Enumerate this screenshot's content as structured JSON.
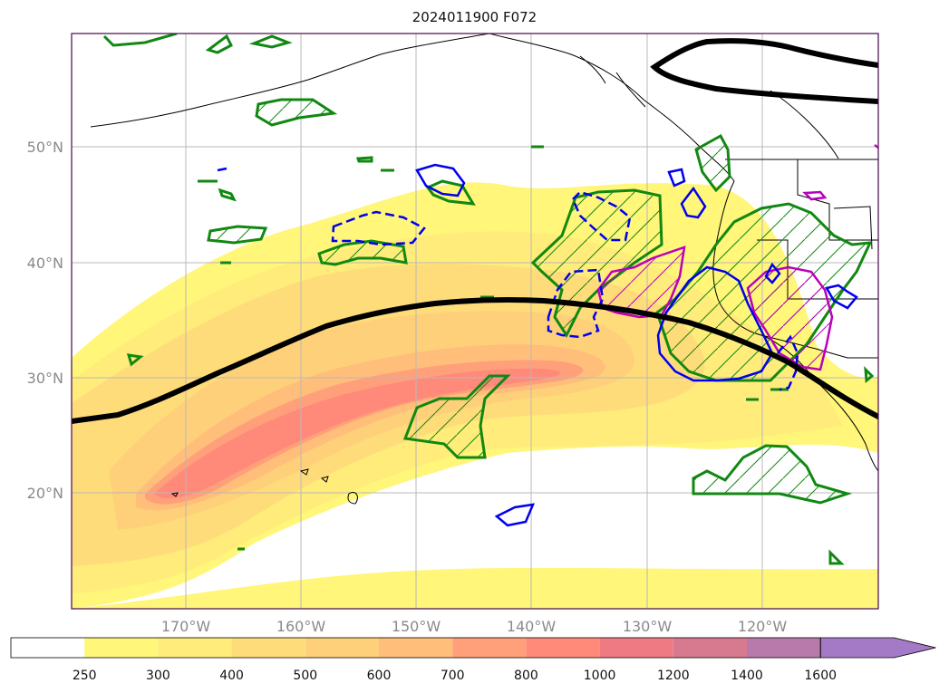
{
  "title": "2024011900 F072",
  "map": {
    "lat_labels": [
      "50°N",
      "40°N",
      "30°N",
      "20°N"
    ],
    "lon_labels": [
      "170°W",
      "160°W",
      "150°W",
      "140°W",
      "130°W",
      "120°W"
    ]
  },
  "colorbar": {
    "levels": [
      "250",
      "300",
      "400",
      "500",
      "600",
      "700",
      "800",
      "1000",
      "1200",
      "1400",
      "1600"
    ],
    "colors": [
      "#ffffff",
      "#fff67a",
      "#ffec7a",
      "#ffdc7a",
      "#ffd07a",
      "#ffbe7a",
      "#ffa07a",
      "#ff8a7a",
      "#ef7a84",
      "#d77a90",
      "#b77aaa",
      "#a47ac6"
    ],
    "extend": "max"
  },
  "colors": {
    "frame": "#551a55",
    "grid": "#b8b8b8",
    "jet_axis": "#000000",
    "green_contour": "#118811",
    "blue_contour": "#0000ee",
    "magenta_contour": "#bb00bb"
  }
}
